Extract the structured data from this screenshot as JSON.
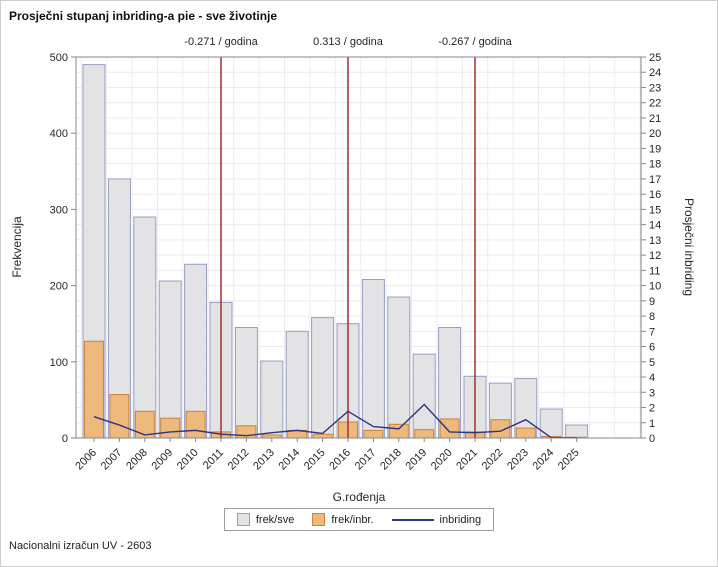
{
  "title": "Prosječni stupanj inbriding-a pie - sve životinje",
  "footer": "Nacionalni izračun UV - 2603",
  "chart_data": {
    "type": "bar",
    "title": "Prosječni stupanj inbriding-a pie - sve životinje",
    "xlabel": "G.rođenja",
    "ylabel_left": "Frekvencija",
    "ylabel_right": "Prosječni inbriding",
    "ylim_left": [
      0,
      500
    ],
    "ylim_right": [
      0,
      25
    ],
    "left_tick_step": 100,
    "right_tick_step": 1,
    "grid": true,
    "legend_position": "bottom",
    "categories": [
      2006,
      2007,
      2008,
      2009,
      2010,
      2011,
      2012,
      2013,
      2014,
      2015,
      2016,
      2017,
      2018,
      2019,
      2020,
      2021,
      2022,
      2023,
      2024,
      2025
    ],
    "series": [
      {
        "name": "frek/sve",
        "type": "bar",
        "axis": "left",
        "fill": "#e3e3e6",
        "stroke": "#969ec2",
        "values": [
          490,
          340,
          290,
          206,
          228,
          178,
          145,
          101,
          140,
          158,
          150,
          208,
          185,
          110,
          145,
          81,
          72,
          78,
          38,
          17
        ]
      },
      {
        "name": "frek/inbr.",
        "type": "bar",
        "axis": "left",
        "fill": "#edb97d",
        "stroke": "#c9823f",
        "values": [
          127,
          57,
          35,
          26,
          35,
          8,
          16,
          4,
          10,
          5,
          21,
          10,
          18,
          11,
          25,
          8,
          24,
          13,
          2,
          1
        ]
      },
      {
        "name": "inbriding",
        "type": "line",
        "axis": "right",
        "stroke": "#31347e",
        "values": [
          1.4,
          0.85,
          0.2,
          0.4,
          0.5,
          0.25,
          0.15,
          0.35,
          0.5,
          0.3,
          1.75,
          0.75,
          0.6,
          2.2,
          0.4,
          0.35,
          0.45,
          1.2,
          0.02,
          0.02
        ]
      }
    ],
    "reference_lines": [
      {
        "year": 2011,
        "label": "-0.271 / godina",
        "color": "#a63a3a"
      },
      {
        "year": 2016,
        "label": "0.313 / godina",
        "color": "#a63a3a"
      },
      {
        "year": 2021,
        "label": "-0.267 / godina",
        "color": "#a63a3a"
      }
    ],
    "colors": {
      "grid": "#ececec",
      "frame": "#878787",
      "text": "#262626"
    }
  }
}
